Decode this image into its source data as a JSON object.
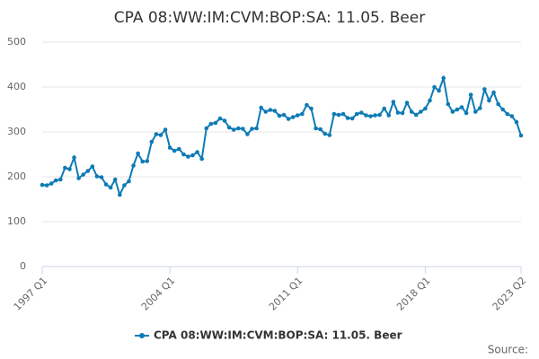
{
  "chart_data": {
    "type": "line",
    "title": "CPA 08:WW:IM:CVM:BOP:SA: 11.05. Beer",
    "categories": [
      "1997 Q1",
      null,
      null,
      null,
      null,
      null,
      null,
      null,
      null,
      null,
      null,
      null,
      null,
      null,
      null,
      null,
      null,
      null,
      null,
      null,
      null,
      null,
      null,
      null,
      null,
      null,
      null,
      null,
      "2004 Q1",
      null,
      null,
      null,
      null,
      null,
      null,
      null,
      null,
      null,
      null,
      null,
      null,
      null,
      null,
      null,
      null,
      null,
      null,
      null,
      null,
      null,
      null,
      null,
      null,
      null,
      null,
      null,
      "2011 Q1",
      null,
      null,
      null,
      null,
      null,
      null,
      null,
      null,
      null,
      null,
      null,
      null,
      null,
      null,
      null,
      null,
      null,
      null,
      null,
      null,
      null,
      null,
      null,
      null,
      null,
      null,
      null,
      "2018 Q1",
      null,
      null,
      null,
      null,
      null,
      null,
      null,
      null,
      null,
      null,
      null,
      null,
      null,
      null,
      null,
      null,
      null,
      null,
      null,
      null,
      "2023 Q2"
    ],
    "series": [
      {
        "name": "CPA 08:WW:IM:CVM:BOP:SA: 11.05. Beer",
        "color": "#0e7bb5",
        "values": [
          182,
          181,
          185,
          192,
          194,
          220,
          217,
          243,
          197,
          205,
          213,
          223,
          201,
          199,
          183,
          176,
          194,
          160,
          181,
          190,
          225,
          252,
          234,
          235,
          278,
          295,
          293,
          305,
          265,
          258,
          262,
          250,
          245,
          248,
          255,
          240,
          308,
          318,
          320,
          330,
          325,
          310,
          305,
          308,
          307,
          295,
          307,
          308,
          354,
          345,
          349,
          347,
          336,
          338,
          329,
          333,
          337,
          340,
          360,
          352,
          308,
          306,
          296,
          293,
          340,
          338,
          340,
          331,
          330,
          340,
          343,
          337,
          335,
          337,
          338,
          352,
          337,
          367,
          343,
          342,
          365,
          345,
          338,
          345,
          352,
          370,
          400,
          392,
          420,
          362,
          345,
          350,
          355,
          342,
          383,
          345,
          353,
          395,
          370,
          388,
          362,
          350,
          340,
          335,
          322,
          292
        ]
      }
    ],
    "ylim": [
      0,
      500
    ],
    "yticks": [
      0,
      100,
      200,
      300,
      400,
      500
    ],
    "grid": true,
    "source": "Source:"
  }
}
